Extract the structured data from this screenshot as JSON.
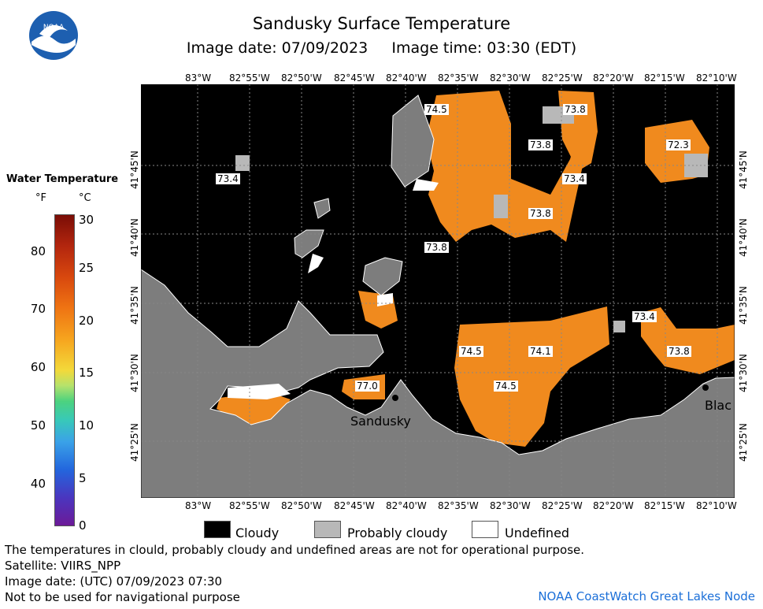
{
  "header": {
    "title": "Sandusky Surface Temperature",
    "subtitle": "Image date: 07/09/2023     Image time: 03:30 (EDT)",
    "logo_text": "NOAA"
  },
  "colorbar": {
    "title": "Water Temperature",
    "unit_f": "°F",
    "unit_c": "°C",
    "f_ticks": [
      "80",
      "70",
      "60",
      "50",
      "40"
    ],
    "c_ticks": [
      "30",
      "25",
      "20",
      "15",
      "10",
      "5",
      "0"
    ]
  },
  "map": {
    "lon_labels": [
      "83°W",
      "82°55'W",
      "82°50'W",
      "82°45'W",
      "82°40'W",
      "82°35'W",
      "82°30'W",
      "82°25'W",
      "82°20'W",
      "82°15'W",
      "82°10'W"
    ],
    "lat_labels": [
      "41°45'N",
      "41°40'N",
      "41°35'N",
      "41°30'N",
      "41°25'N"
    ],
    "temperatures_f": [
      "74.5",
      "73.8",
      "73.8",
      "73.4",
      "73.8",
      "72.3",
      "73.4",
      "73.8",
      "73.4",
      "74.5",
      "74.1",
      "73.8",
      "74.5",
      "77.0"
    ],
    "places": [
      "Sandusky",
      "Blac"
    ]
  },
  "legend": {
    "items": [
      "Cloudy",
      "Probably cloudy",
      "Undefined"
    ]
  },
  "footer": {
    "note": "The temperatures in clould, probably cloudy and undefined areas are not for operational purpose.",
    "satellite": "Satellite: VIIRS_NPP",
    "utc_date": "Image date: (UTC) 07/09/2023  07:30",
    "nav_warning": "Not to be used for navigational purpose",
    "credit": "NOAA CoastWatch Great Lakes Node"
  },
  "colors": {
    "water_warm": "#f08a1e",
    "cloudy": "#000000",
    "probably_cloudy": "#b8b8b8",
    "land": "#7d7d7d",
    "undefined": "#ffffff"
  }
}
